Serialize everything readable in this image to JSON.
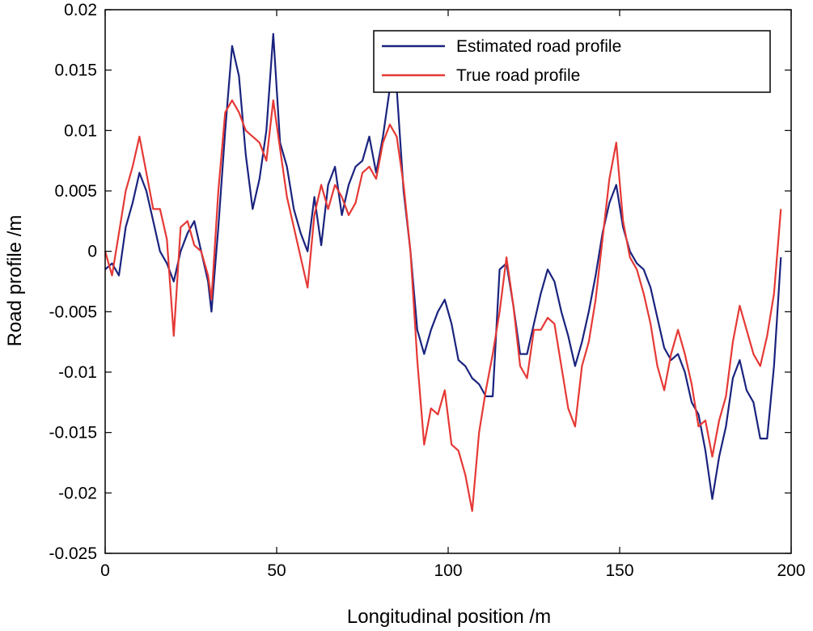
{
  "chart_data": {
    "type": "line",
    "title": "",
    "xlabel": "Longitudinal position /m",
    "ylabel": "Road profile /m",
    "xlim": [
      0,
      200
    ],
    "ylim": [
      -0.025,
      0.02
    ],
    "grid": false,
    "legend_position": "top-right",
    "x_ticks": [
      0,
      50,
      100,
      150,
      200
    ],
    "x_tick_labels": [
      "0",
      "50",
      "100",
      "150",
      "200"
    ],
    "y_ticks": [
      -0.025,
      -0.02,
      -0.015,
      -0.01,
      -0.005,
      0,
      0.005,
      0.01,
      0.015,
      0.02
    ],
    "y_tick_labels": [
      "-0.025",
      "-0.02",
      "-0.015",
      "-0.01",
      "-0.005",
      "0",
      "0.005",
      "0.01",
      "0.015",
      "0.02"
    ],
    "series": [
      {
        "name": "Estimated road profile",
        "color": "#1a237e",
        "x": [
          0,
          2,
          4,
          6,
          8,
          10,
          12,
          14,
          16,
          18,
          20,
          22,
          24,
          26,
          28,
          30,
          31,
          33,
          35,
          37,
          39,
          41,
          43,
          45,
          47,
          49,
          51,
          53,
          55,
          57,
          59,
          61,
          63,
          65,
          67,
          69,
          71,
          73,
          75,
          77,
          79,
          81,
          83,
          85,
          87,
          89,
          91,
          93,
          95,
          97,
          99,
          101,
          103,
          105,
          107,
          109,
          111,
          113,
          115,
          117,
          119,
          121,
          123,
          125,
          127,
          129,
          131,
          133,
          135,
          137,
          139,
          141,
          143,
          145,
          147,
          149,
          151,
          153,
          155,
          157,
          159,
          161,
          163,
          165,
          167,
          169,
          171,
          173,
          175,
          177,
          179,
          181,
          183,
          185,
          187,
          189,
          191,
          193,
          195,
          197
        ],
        "y": [
          -0.0015,
          -0.001,
          -0.002,
          0.002,
          0.004,
          0.0065,
          0.005,
          0.0025,
          0.0,
          -0.001,
          -0.0025,
          0.0,
          0.0015,
          0.0025,
          0.0,
          -0.0025,
          -0.005,
          0.002,
          0.01,
          0.017,
          0.0145,
          0.008,
          0.0035,
          0.006,
          0.01,
          0.018,
          0.009,
          0.007,
          0.0035,
          0.0015,
          0.0,
          0.0045,
          0.0005,
          0.0055,
          0.007,
          0.003,
          0.0055,
          0.007,
          0.0075,
          0.0095,
          0.0065,
          0.0095,
          0.0135,
          0.0135,
          0.005,
          0.0,
          -0.0065,
          -0.0085,
          -0.0065,
          -0.005,
          -0.004,
          -0.006,
          -0.009,
          -0.0095,
          -0.0105,
          -0.011,
          -0.012,
          -0.012,
          -0.0015,
          -0.001,
          -0.0045,
          -0.0085,
          -0.0085,
          -0.006,
          -0.0035,
          -0.0015,
          -0.0025,
          -0.005,
          -0.007,
          -0.0095,
          -0.0075,
          -0.005,
          -0.002,
          0.0015,
          0.004,
          0.0055,
          0.002,
          0.0,
          -0.001,
          -0.0015,
          -0.003,
          -0.0055,
          -0.008,
          -0.009,
          -0.0085,
          -0.01,
          -0.0125,
          -0.0135,
          -0.0165,
          -0.0205,
          -0.017,
          -0.0145,
          -0.0105,
          -0.009,
          -0.0115,
          -0.0125,
          -0.0155,
          -0.0155,
          -0.0095,
          -0.0005
        ]
      },
      {
        "name": "True road profile",
        "color": "#e53935",
        "x": [
          0,
          2,
          4,
          6,
          8,
          10,
          12,
          14,
          16,
          18,
          20,
          22,
          24,
          26,
          28,
          30,
          31,
          33,
          35,
          37,
          39,
          41,
          43,
          45,
          47,
          49,
          51,
          53,
          55,
          57,
          59,
          61,
          63,
          65,
          67,
          69,
          71,
          73,
          75,
          77,
          79,
          81,
          83,
          85,
          87,
          89,
          91,
          93,
          95,
          97,
          99,
          101,
          103,
          105,
          107,
          109,
          111,
          113,
          115,
          117,
          119,
          121,
          123,
          125,
          127,
          129,
          131,
          133,
          135,
          137,
          139,
          141,
          143,
          145,
          147,
          149,
          151,
          153,
          155,
          157,
          159,
          161,
          163,
          165,
          167,
          169,
          171,
          173,
          175,
          177,
          179,
          181,
          183,
          185,
          187,
          189,
          191,
          193,
          195,
          197
        ],
        "y": [
          0.0,
          -0.002,
          0.0015,
          0.005,
          0.007,
          0.0095,
          0.0065,
          0.0035,
          0.0035,
          0.001,
          -0.007,
          0.002,
          0.0025,
          0.0005,
          0.0,
          -0.002,
          -0.004,
          0.005,
          0.0115,
          0.0125,
          0.0115,
          0.01,
          0.0095,
          0.009,
          0.0075,
          0.0125,
          0.0085,
          0.0045,
          0.002,
          -0.0005,
          -0.003,
          0.003,
          0.0055,
          0.0035,
          0.0055,
          0.0045,
          0.003,
          0.004,
          0.0065,
          0.007,
          0.006,
          0.009,
          0.0105,
          0.0095,
          0.0055,
          0.0,
          -0.009,
          -0.016,
          -0.013,
          -0.0135,
          -0.0115,
          -0.016,
          -0.0165,
          -0.0185,
          -0.0215,
          -0.015,
          -0.0115,
          -0.0085,
          -0.005,
          -0.0005,
          -0.0045,
          -0.0095,
          -0.0105,
          -0.0065,
          -0.0065,
          -0.0055,
          -0.006,
          -0.0095,
          -0.013,
          -0.0145,
          -0.0095,
          -0.0075,
          -0.004,
          0.001,
          0.006,
          0.009,
          0.0025,
          -0.0005,
          -0.0015,
          -0.0035,
          -0.006,
          -0.0095,
          -0.0115,
          -0.0085,
          -0.0065,
          -0.0085,
          -0.011,
          -0.0145,
          -0.014,
          -0.017,
          -0.014,
          -0.012,
          -0.0075,
          -0.0045,
          -0.0065,
          -0.0085,
          -0.0095,
          -0.007,
          -0.0035,
          0.0035
        ]
      }
    ]
  }
}
